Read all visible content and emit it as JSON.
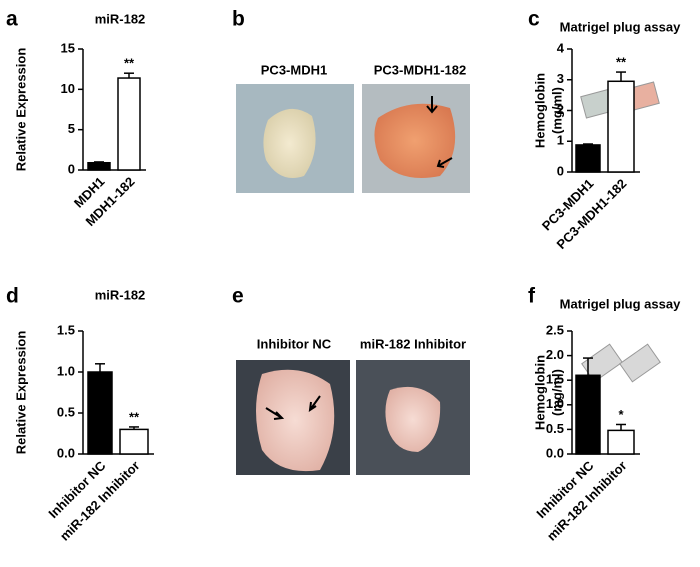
{
  "panel_labels": [
    "a",
    "b",
    "c",
    "d",
    "e",
    "f"
  ],
  "photos": {
    "b": [
      "PC3-MDH1",
      "PC3-MDH1-182"
    ],
    "e": [
      "Inhibitor NC",
      "miR-182 Inhibitor"
    ]
  },
  "chart_data": [
    {
      "type": "bar",
      "title": "miR-182",
      "y_label": [
        "Relative Expression"
      ],
      "categories": [
        "MDH1",
        "MDH1-182"
      ],
      "values": [
        0.9,
        11.4
      ],
      "errors": [
        0.1,
        0.6
      ],
      "colors": [
        "#000000",
        "#ffffff"
      ],
      "significance": [
        null,
        "**"
      ],
      "ylim": [
        0,
        15
      ],
      "yticks": [
        0,
        5,
        10,
        15
      ]
    },
    {
      "type": "bar",
      "title": "Matrigel plug assay",
      "y_label": [
        "Hemoglobin",
        "(mg/ml)"
      ],
      "categories": [
        "PC3-MDH1",
        "PC3-MDH1-182"
      ],
      "values": [
        0.88,
        2.95
      ],
      "errors": [
        0.03,
        0.3
      ],
      "colors": [
        "#000000",
        "#ffffff"
      ],
      "significance": [
        null,
        "**"
      ],
      "ylim": [
        0,
        4
      ],
      "yticks": [
        0,
        1,
        2,
        3,
        4
      ]
    },
    {
      "type": "bar",
      "title": "miR-182",
      "y_label": [
        "Relative Expression"
      ],
      "categories": [
        "Inhibitor NC",
        "miR-182 Inhibitor"
      ],
      "values": [
        1.0,
        0.3
      ],
      "errors": [
        0.1,
        0.03
      ],
      "colors": [
        "#000000",
        "#ffffff"
      ],
      "significance": [
        null,
        "**"
      ],
      "ylim": [
        0,
        1.5
      ],
      "yticks": [
        {
          "value": 0,
          "label": "0.0"
        },
        0.5,
        {
          "value": 1,
          "label": "1.0"
        },
        1.5
      ]
    },
    {
      "type": "bar",
      "title": "Matrigel plug assay",
      "y_label": [
        "Hemoglobin",
        "(mg/ml)"
      ],
      "categories": [
        "Inhibitor NC",
        "miR-182 Inhibitor"
      ],
      "values": [
        1.6,
        0.48
      ],
      "errors": [
        0.35,
        0.12
      ],
      "colors": [
        "#000000",
        "#ffffff"
      ],
      "significance": [
        null,
        "*"
      ],
      "ylim": [
        0,
        2.5
      ],
      "yticks": [
        {
          "value": 0,
          "label": "0.0"
        },
        0.5,
        {
          "value": 1,
          "label": "1.0"
        },
        1.5,
        {
          "value": 2,
          "label": "2.0"
        },
        2.5
      ]
    }
  ]
}
